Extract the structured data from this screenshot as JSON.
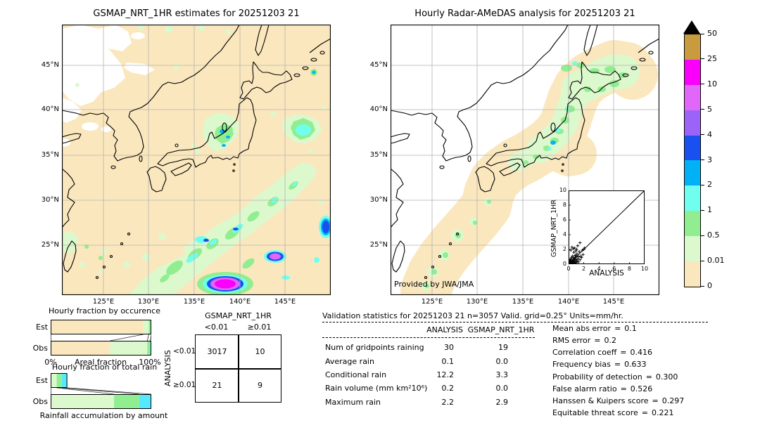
{
  "ui": {
    "eq": "="
  },
  "left_map": {
    "title": "GSMAP_NRT_1HR estimates for 20251203 21",
    "x_tick_labels": [
      "125°E",
      "130°E",
      "135°E",
      "140°E",
      "145°E"
    ],
    "y_tick_labels": [
      "45°N",
      "40°N",
      "35°N",
      "30°N",
      "25°N"
    ]
  },
  "right_map": {
    "title": "Hourly Radar-AMeDAS analysis for 20251203 21",
    "x_tick_labels": [
      "125°E",
      "130°E",
      "135°E",
      "140°E",
      "145°E"
    ],
    "y_tick_labels": [
      "45°N",
      "40°N",
      "35°N",
      "30°N",
      "25°N"
    ],
    "credit": "Provided by JWA/JMA"
  },
  "colorbar": {
    "units": "mm/hr",
    "tick_labels": [
      "50",
      "25",
      "10",
      "5",
      "4",
      "3",
      "2",
      "1",
      "0.5",
      "0.01",
      "0"
    ],
    "colors_top_to_bottom": [
      "#ca9a3f",
      "#fa00fa",
      "#e167fb",
      "#9b63f8",
      "#1a50f0",
      "#00b2f5",
      "#70ffee",
      "#90ee90",
      "#dcf8cd",
      "#fbe7bd"
    ],
    "overflow_marker_color": "#000000"
  },
  "palette": {
    "background": "#ffffff",
    "no_rain_fill": "#fbe7bd",
    "gridline": "#b3b3b3",
    "coastline": "#000000"
  },
  "stats": {
    "title": "Validation statistics for 20251203 21  n=3057 Valid. grid=0.25° Units=mm/hr.",
    "col_headers": [
      "ANALYSIS",
      "GSMAP_NRT_1HR"
    ],
    "rows": [
      {
        "label": "Num of gridpoints raining",
        "analysis": "30",
        "gsmap": "19"
      },
      {
        "label": "Average rain",
        "analysis": "0.1",
        "gsmap": "0.0"
      },
      {
        "label": "Conditional rain",
        "analysis": "12.2",
        "gsmap": "3.3"
      },
      {
        "label": "Rain volume (mm km²10⁶)",
        "analysis": "0.2",
        "gsmap": "0.0"
      },
      {
        "label": "Maximum rain",
        "analysis": "2.2",
        "gsmap": "2.9"
      }
    ],
    "scores": [
      {
        "label": "Mean abs error",
        "value": "0.1"
      },
      {
        "label": "RMS error",
        "value": "0.2"
      },
      {
        "label": "Correlation coeff",
        "value": "0.416"
      },
      {
        "label": "Frequency bias",
        "value": "0.633"
      },
      {
        "label": "Probability of detection",
        "value": "0.300"
      },
      {
        "label": "False alarm ratio",
        "value": "0.526"
      },
      {
        "label": "Hanssen & Kuipers score",
        "value": "0.297"
      },
      {
        "label": "Equitable threat score",
        "value": "0.221"
      }
    ]
  },
  "chart_data": [
    {
      "id": "occurrence_fraction",
      "type": "bar",
      "orientation": "horizontal_stacked",
      "title": "Hourly fraction by occurence",
      "xlabel": "Areal fraction",
      "xlim": [
        0,
        100
      ],
      "x_tick_labels": [
        "0%",
        "100%"
      ],
      "categories": [
        "Est",
        "Obs"
      ],
      "bins": [
        "<0.01 mm/hr",
        "0.01-0.5 mm/hr",
        "0.5-1 mm/hr",
        "1-2 mm/hr"
      ],
      "bin_colors": [
        "#fbe7bd",
        "#dcf8cd",
        "#90ee90",
        "#55e9ff"
      ],
      "series": [
        {
          "name": "Est",
          "segments_pct": [
            92.0,
            5.5,
            2.5,
            0.0
          ]
        },
        {
          "name": "Obs",
          "segments_pct": [
            59.0,
            37.0,
            3.0,
            1.0
          ]
        }
      ]
    },
    {
      "id": "total_rain_fraction",
      "type": "bar",
      "orientation": "horizontal_stacked",
      "title": "Hourly fraction of total rain",
      "xlabel": "Rainfall accumulation by amount",
      "xlim": [
        0,
        100
      ],
      "categories": [
        "Est",
        "Obs"
      ],
      "bins": [
        "0.01-0.5 mm/hr",
        "0.5-1 mm/hr",
        "1-2 mm/hr"
      ],
      "bin_colors": [
        "#dcf8cd",
        "#90ee90",
        "#55e9ff"
      ],
      "series": [
        {
          "name": "Est",
          "segments_pct": [
            6.0,
            5.0,
            5.5
          ]
        },
        {
          "name": "Obs",
          "segments_pct": [
            63.0,
            25.0,
            12.0
          ]
        }
      ]
    },
    {
      "id": "contingency_table",
      "type": "table",
      "col_group": "GSMAP_NRT_1HR",
      "row_group": "ANALYSIS",
      "col_labels": [
        "<0.01",
        "≥0.01"
      ],
      "row_labels": [
        "<0.01",
        "≥0.01"
      ],
      "values": [
        [
          3017,
          10
        ],
        [
          21,
          9
        ]
      ]
    },
    {
      "id": "scatter_inset",
      "type": "scatter",
      "xlabel": "ANALYSIS",
      "ylabel": "GSMAP_NRT_1HR",
      "xlim": [
        0,
        10
      ],
      "ylim": [
        0,
        10
      ],
      "ticks": [
        0,
        2,
        4,
        6,
        8,
        10
      ],
      "diagonal": true,
      "marker": "+",
      "points": [
        [
          0.05,
          0.05
        ],
        [
          0.08,
          0.15
        ],
        [
          0.1,
          0.05
        ],
        [
          0.1,
          0.3
        ],
        [
          0.15,
          0.1
        ],
        [
          0.15,
          0.45
        ],
        [
          0.2,
          0.05
        ],
        [
          0.2,
          0.2
        ],
        [
          0.2,
          0.6
        ],
        [
          0.25,
          0.1
        ],
        [
          0.25,
          0.35
        ],
        [
          0.3,
          0.05
        ],
        [
          0.3,
          0.25
        ],
        [
          0.3,
          0.7
        ],
        [
          0.3,
          1.9
        ],
        [
          0.35,
          0.15
        ],
        [
          0.35,
          0.5
        ],
        [
          0.4,
          0.1
        ],
        [
          0.4,
          0.3
        ],
        [
          0.4,
          0.9
        ],
        [
          0.45,
          0.2
        ],
        [
          0.45,
          2.3
        ],
        [
          0.5,
          0.1
        ],
        [
          0.5,
          0.45
        ],
        [
          0.5,
          1.1
        ],
        [
          0.55,
          0.3
        ],
        [
          0.6,
          0.15
        ],
        [
          0.6,
          0.7
        ],
        [
          0.6,
          2.1
        ],
        [
          0.65,
          0.4
        ],
        [
          0.7,
          0.2
        ],
        [
          0.7,
          0.9
        ],
        [
          0.7,
          1.6
        ],
        [
          0.75,
          0.5
        ],
        [
          0.8,
          0.1
        ],
        [
          0.8,
          0.7
        ],
        [
          0.8,
          2.2
        ],
        [
          0.85,
          1.2
        ],
        [
          0.9,
          0.3
        ],
        [
          0.9,
          0.9
        ],
        [
          0.95,
          1.8
        ],
        [
          1.0,
          0.2
        ],
        [
          1.0,
          0.6
        ],
        [
          1.0,
          1.1
        ],
        [
          1.05,
          2.0
        ],
        [
          1.1,
          0.4
        ],
        [
          1.1,
          1.4
        ],
        [
          1.2,
          0.7
        ],
        [
          1.2,
          2.5
        ],
        [
          1.3,
          0.3
        ],
        [
          1.3,
          1.0
        ],
        [
          1.4,
          1.7
        ],
        [
          1.5,
          0.6
        ],
        [
          1.5,
          2.9
        ],
        [
          1.6,
          1.1
        ],
        [
          1.7,
          0.9
        ],
        [
          1.8,
          1.9
        ],
        [
          1.9,
          1.3
        ],
        [
          2.0,
          2.0
        ],
        [
          2.1,
          2.2
        ]
      ]
    }
  ]
}
